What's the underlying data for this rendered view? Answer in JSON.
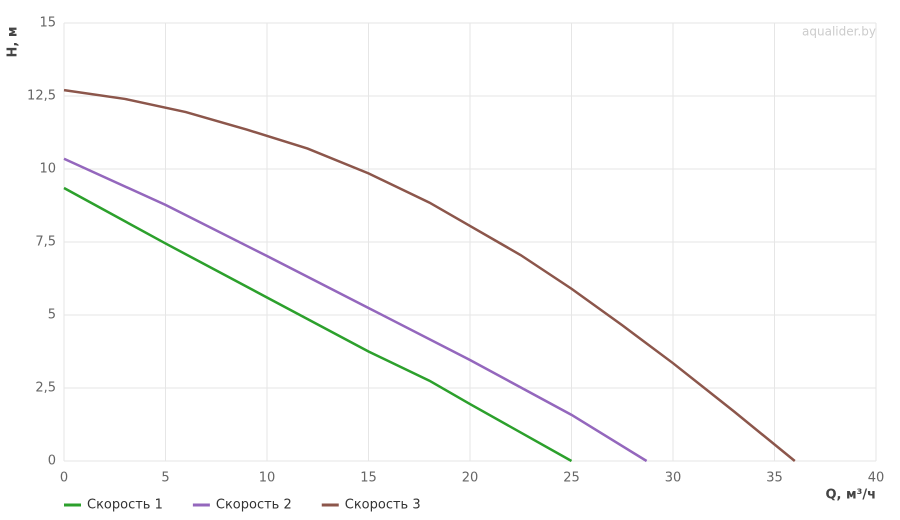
{
  "chart_data": {
    "type": "line",
    "watermark": "aqualider.by",
    "x_label": "Q, м³/ч",
    "y_label": "H, м",
    "xlim": [
      0,
      40
    ],
    "xticks": [
      0,
      5,
      10,
      15,
      20,
      25,
      30,
      35,
      40
    ],
    "ylim": [
      0,
      15
    ],
    "yticks": [
      0,
      {
        "value": 2.5,
        "label": "2,5"
      },
      5,
      {
        "value": 7.5,
        "label": "7,5"
      },
      10,
      {
        "value": 12.5,
        "label": "12,5"
      },
      15
    ],
    "grid": true,
    "legend": "bottom-left",
    "series": [
      {
        "name": "Скорость 1",
        "color": "#2ca02c",
        "x": [
          0,
          5,
          10,
          15,
          18,
          20,
          25
        ],
        "values": [
          9.35,
          7.45,
          5.6,
          3.75,
          2.75,
          1.95,
          0
        ]
      },
      {
        "name": "Скорость 2",
        "color": "#9467bd",
        "x": [
          0,
          5,
          10,
          15,
          20,
          25,
          28.7
        ],
        "values": [
          10.35,
          8.77,
          7.02,
          5.24,
          3.46,
          1.58,
          0
        ]
      },
      {
        "name": "Скорость 3",
        "color": "#8c564b",
        "x": [
          0,
          3,
          6,
          9,
          12,
          15,
          18,
          20,
          22.5,
          25,
          27.5,
          30,
          33,
          36
        ],
        "values": [
          12.7,
          12.4,
          11.95,
          11.35,
          10.7,
          9.85,
          8.85,
          8.05,
          7.05,
          5.9,
          4.65,
          3.35,
          1.7,
          0
        ]
      }
    ]
  }
}
